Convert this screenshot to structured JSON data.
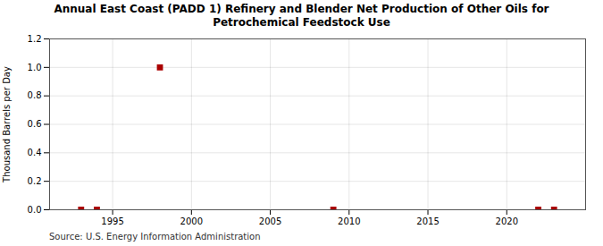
{
  "chart_data": {
    "type": "scatter",
    "title": "Annual East Coast (PADD 1) Refinery and Blender Net Production of Other Oils for\nPetrochemical Feedstock Use",
    "ylabel": "Thousand Barrels per Day",
    "source": "Source: U.S. Energy Information Administration",
    "x": [
      1993,
      1994,
      1998,
      2009,
      2022,
      2023
    ],
    "values": [
      0.0,
      0.0,
      1.0,
      0.0,
      0.0,
      0.0
    ],
    "color": "#aa0000",
    "marker": "square",
    "xlim": [
      1991,
      2025
    ],
    "xticks": [
      1995,
      2000,
      2005,
      2010,
      2015,
      2020
    ],
    "ylim": [
      0.0,
      1.2
    ],
    "yticks": [
      {
        "value": 0.0,
        "label": "0.0"
      },
      0.2,
      0.4,
      0.6,
      0.8,
      {
        "value": 1.0,
        "label": "1.0"
      },
      1.2
    ],
    "grid": true
  }
}
